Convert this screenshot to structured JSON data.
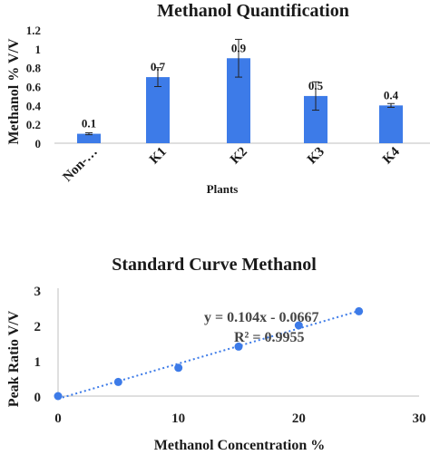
{
  "chart_data": [
    {
      "type": "bar",
      "title": "Methanol Quantification",
      "xlabel": "Plants",
      "ylabel": "Methanol % V/V",
      "ylim": [
        0,
        1.2
      ],
      "y_ticks": [
        "0",
        "0.2",
        "0.4",
        "0.6",
        "0.8",
        "1",
        "1.2"
      ],
      "grid": false,
      "categories": [
        "Non-…",
        "K1",
        "K2",
        "K3",
        "K4"
      ],
      "values": [
        0.1,
        0.7,
        0.9,
        0.5,
        0.4
      ],
      "errors": [
        0.01,
        0.1,
        0.2,
        0.15,
        0.02
      ],
      "data_labels": [
        "0.1",
        "0.7",
        "0.9",
        "0.5",
        "0.4"
      ],
      "bar_color": "#3d7be8"
    },
    {
      "type": "scatter",
      "title": "Standard Curve Methanol",
      "xlabel": "Methanol Concentration %",
      "ylabel": "Peak Ratio V/V",
      "xlim": [
        0,
        30
      ],
      "ylim": [
        0,
        3
      ],
      "x_ticks": [
        "0",
        "10",
        "20",
        "30"
      ],
      "y_ticks": [
        "0",
        "1",
        "2",
        "3"
      ],
      "grid": false,
      "series": [
        {
          "x": [
            0,
            5,
            10,
            15,
            20,
            25
          ],
          "y": [
            0,
            0.4,
            0.8,
            1.4,
            2.0,
            2.4
          ]
        }
      ],
      "trendline": {
        "style": "dotted",
        "equation": "y = 0.104x - 0.0667",
        "r_squared": "R² = 0.9955"
      },
      "point_color": "#3d7be8"
    }
  ]
}
